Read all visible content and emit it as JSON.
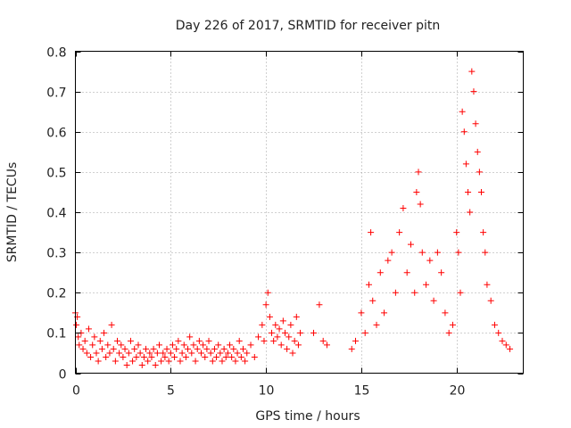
{
  "chart_data": {
    "type": "scatter",
    "title": "Day 226 of 2017, SRMTID for receiver pitn",
    "xlabel": "GPS time / hours",
    "ylabel": "SRMTID / TECUs",
    "xlim": [
      0,
      23.5
    ],
    "ylim": [
      0,
      0.8
    ],
    "grid": true,
    "marker": "plus",
    "color": "#ff0000",
    "x_ticks": [
      {
        "value": 0,
        "label": "0"
      },
      {
        "value": 5,
        "label": "5"
      },
      {
        "value": 10,
        "label": "10"
      },
      {
        "value": 15,
        "label": "15"
      },
      {
        "value": 20,
        "label": "20"
      }
    ],
    "y_ticks": [
      {
        "value": 0,
        "label": "0"
      },
      {
        "value": 0.1,
        "label": "0.1"
      },
      {
        "value": 0.2,
        "label": "0.2"
      },
      {
        "value": 0.3,
        "label": "0.3"
      },
      {
        "value": 0.4,
        "label": "0.4"
      },
      {
        "value": 0.5,
        "label": "0.5"
      },
      {
        "value": 0.6,
        "label": "0.6"
      },
      {
        "value": 0.7,
        "label": "0.7"
      },
      {
        "value": 0.8,
        "label": "0.8"
      }
    ],
    "series": [
      {
        "name": "SRMTID",
        "points": [
          [
            0.0,
            0.15
          ],
          [
            0.05,
            0.12
          ],
          [
            0.1,
            0.14
          ],
          [
            0.15,
            0.09
          ],
          [
            0.2,
            0.07
          ],
          [
            0.3,
            0.1
          ],
          [
            0.4,
            0.06
          ],
          [
            0.5,
            0.08
          ],
          [
            0.6,
            0.05
          ],
          [
            0.7,
            0.11
          ],
          [
            0.8,
            0.04
          ],
          [
            0.9,
            0.07
          ],
          [
            1.0,
            0.09
          ],
          [
            1.1,
            0.05
          ],
          [
            1.2,
            0.03
          ],
          [
            1.3,
            0.08
          ],
          [
            1.4,
            0.06
          ],
          [
            1.5,
            0.1
          ],
          [
            1.6,
            0.04
          ],
          [
            1.7,
            0.07
          ],
          [
            1.8,
            0.05
          ],
          [
            1.9,
            0.12
          ],
          [
            2.0,
            0.06
          ],
          [
            2.1,
            0.03
          ],
          [
            2.2,
            0.08
          ],
          [
            2.3,
            0.05
          ],
          [
            2.4,
            0.07
          ],
          [
            2.5,
            0.04
          ],
          [
            2.6,
            0.06
          ],
          [
            2.7,
            0.02
          ],
          [
            2.8,
            0.05
          ],
          [
            2.9,
            0.08
          ],
          [
            3.0,
            0.03
          ],
          [
            3.1,
            0.06
          ],
          [
            3.2,
            0.04
          ],
          [
            3.3,
            0.07
          ],
          [
            3.4,
            0.05
          ],
          [
            3.5,
            0.02
          ],
          [
            3.6,
            0.04
          ],
          [
            3.7,
            0.06
          ],
          [
            3.8,
            0.03
          ],
          [
            3.9,
            0.05
          ],
          [
            4.0,
            0.04
          ],
          [
            4.1,
            0.06
          ],
          [
            4.2,
            0.02
          ],
          [
            4.3,
            0.05
          ],
          [
            4.4,
            0.07
          ],
          [
            4.5,
            0.03
          ],
          [
            4.6,
            0.05
          ],
          [
            4.7,
            0.04
          ],
          [
            4.8,
            0.06
          ],
          [
            4.9,
            0.03
          ],
          [
            5.0,
            0.05
          ],
          [
            5.1,
            0.07
          ],
          [
            5.2,
            0.04
          ],
          [
            5.3,
            0.06
          ],
          [
            5.4,
            0.08
          ],
          [
            5.5,
            0.03
          ],
          [
            5.6,
            0.05
          ],
          [
            5.7,
            0.07
          ],
          [
            5.8,
            0.04
          ],
          [
            5.9,
            0.06
          ],
          [
            6.0,
            0.09
          ],
          [
            6.1,
            0.05
          ],
          [
            6.2,
            0.07
          ],
          [
            6.3,
            0.03
          ],
          [
            6.4,
            0.06
          ],
          [
            6.5,
            0.08
          ],
          [
            6.6,
            0.05
          ],
          [
            6.7,
            0.07
          ],
          [
            6.8,
            0.04
          ],
          [
            6.9,
            0.06
          ],
          [
            7.0,
            0.08
          ],
          [
            7.1,
            0.05
          ],
          [
            7.2,
            0.03
          ],
          [
            7.3,
            0.06
          ],
          [
            7.4,
            0.04
          ],
          [
            7.5,
            0.07
          ],
          [
            7.6,
            0.05
          ],
          [
            7.7,
            0.03
          ],
          [
            7.8,
            0.06
          ],
          [
            7.9,
            0.04
          ],
          [
            8.0,
            0.05
          ],
          [
            8.1,
            0.07
          ],
          [
            8.2,
            0.04
          ],
          [
            8.3,
            0.06
          ],
          [
            8.4,
            0.03
          ],
          [
            8.5,
            0.05
          ],
          [
            8.6,
            0.08
          ],
          [
            8.7,
            0.04
          ],
          [
            8.8,
            0.06
          ],
          [
            8.9,
            0.03
          ],
          [
            9.0,
            0.05
          ],
          [
            9.2,
            0.07
          ],
          [
            9.4,
            0.04
          ],
          [
            9.6,
            0.09
          ],
          [
            9.8,
            0.12
          ],
          [
            9.9,
            0.08
          ],
          [
            10.0,
            0.17
          ],
          [
            10.1,
            0.2
          ],
          [
            10.2,
            0.14
          ],
          [
            10.3,
            0.1
          ],
          [
            10.4,
            0.08
          ],
          [
            10.5,
            0.12
          ],
          [
            10.6,
            0.09
          ],
          [
            10.7,
            0.11
          ],
          [
            10.8,
            0.07
          ],
          [
            10.9,
            0.13
          ],
          [
            11.0,
            0.1
          ],
          [
            11.1,
            0.06
          ],
          [
            11.2,
            0.09
          ],
          [
            11.3,
            0.12
          ],
          [
            11.4,
            0.05
          ],
          [
            11.5,
            0.08
          ],
          [
            11.6,
            0.14
          ],
          [
            11.7,
            0.07
          ],
          [
            11.8,
            0.1
          ],
          [
            12.5,
            0.1
          ],
          [
            12.8,
            0.17
          ],
          [
            13.0,
            0.08
          ],
          [
            13.2,
            0.07
          ],
          [
            14.5,
            0.06
          ],
          [
            14.7,
            0.08
          ],
          [
            15.0,
            0.15
          ],
          [
            15.2,
            0.1
          ],
          [
            15.4,
            0.22
          ],
          [
            15.5,
            0.35
          ],
          [
            15.6,
            0.18
          ],
          [
            15.8,
            0.12
          ],
          [
            16.0,
            0.25
          ],
          [
            16.2,
            0.15
          ],
          [
            16.4,
            0.28
          ],
          [
            16.6,
            0.3
          ],
          [
            16.8,
            0.2
          ],
          [
            17.0,
            0.35
          ],
          [
            17.2,
            0.41
          ],
          [
            17.4,
            0.25
          ],
          [
            17.6,
            0.32
          ],
          [
            17.8,
            0.2
          ],
          [
            17.9,
            0.45
          ],
          [
            18.0,
            0.5
          ],
          [
            18.1,
            0.42
          ],
          [
            18.2,
            0.3
          ],
          [
            18.4,
            0.22
          ],
          [
            18.6,
            0.28
          ],
          [
            18.8,
            0.18
          ],
          [
            19.0,
            0.3
          ],
          [
            19.2,
            0.25
          ],
          [
            19.4,
            0.15
          ],
          [
            19.6,
            0.1
          ],
          [
            19.8,
            0.12
          ],
          [
            20.0,
            0.35
          ],
          [
            20.1,
            0.3
          ],
          [
            20.2,
            0.2
          ],
          [
            20.3,
            0.65
          ],
          [
            20.4,
            0.6
          ],
          [
            20.5,
            0.52
          ],
          [
            20.6,
            0.45
          ],
          [
            20.7,
            0.4
          ],
          [
            20.8,
            0.75
          ],
          [
            20.9,
            0.7
          ],
          [
            21.0,
            0.62
          ],
          [
            21.1,
            0.55
          ],
          [
            21.2,
            0.5
          ],
          [
            21.3,
            0.45
          ],
          [
            21.4,
            0.35
          ],
          [
            21.5,
            0.3
          ],
          [
            21.6,
            0.22
          ],
          [
            21.8,
            0.18
          ],
          [
            22.0,
            0.12
          ],
          [
            22.2,
            0.1
          ],
          [
            22.4,
            0.08
          ],
          [
            22.6,
            0.07
          ],
          [
            22.8,
            0.06
          ]
        ]
      }
    ]
  }
}
